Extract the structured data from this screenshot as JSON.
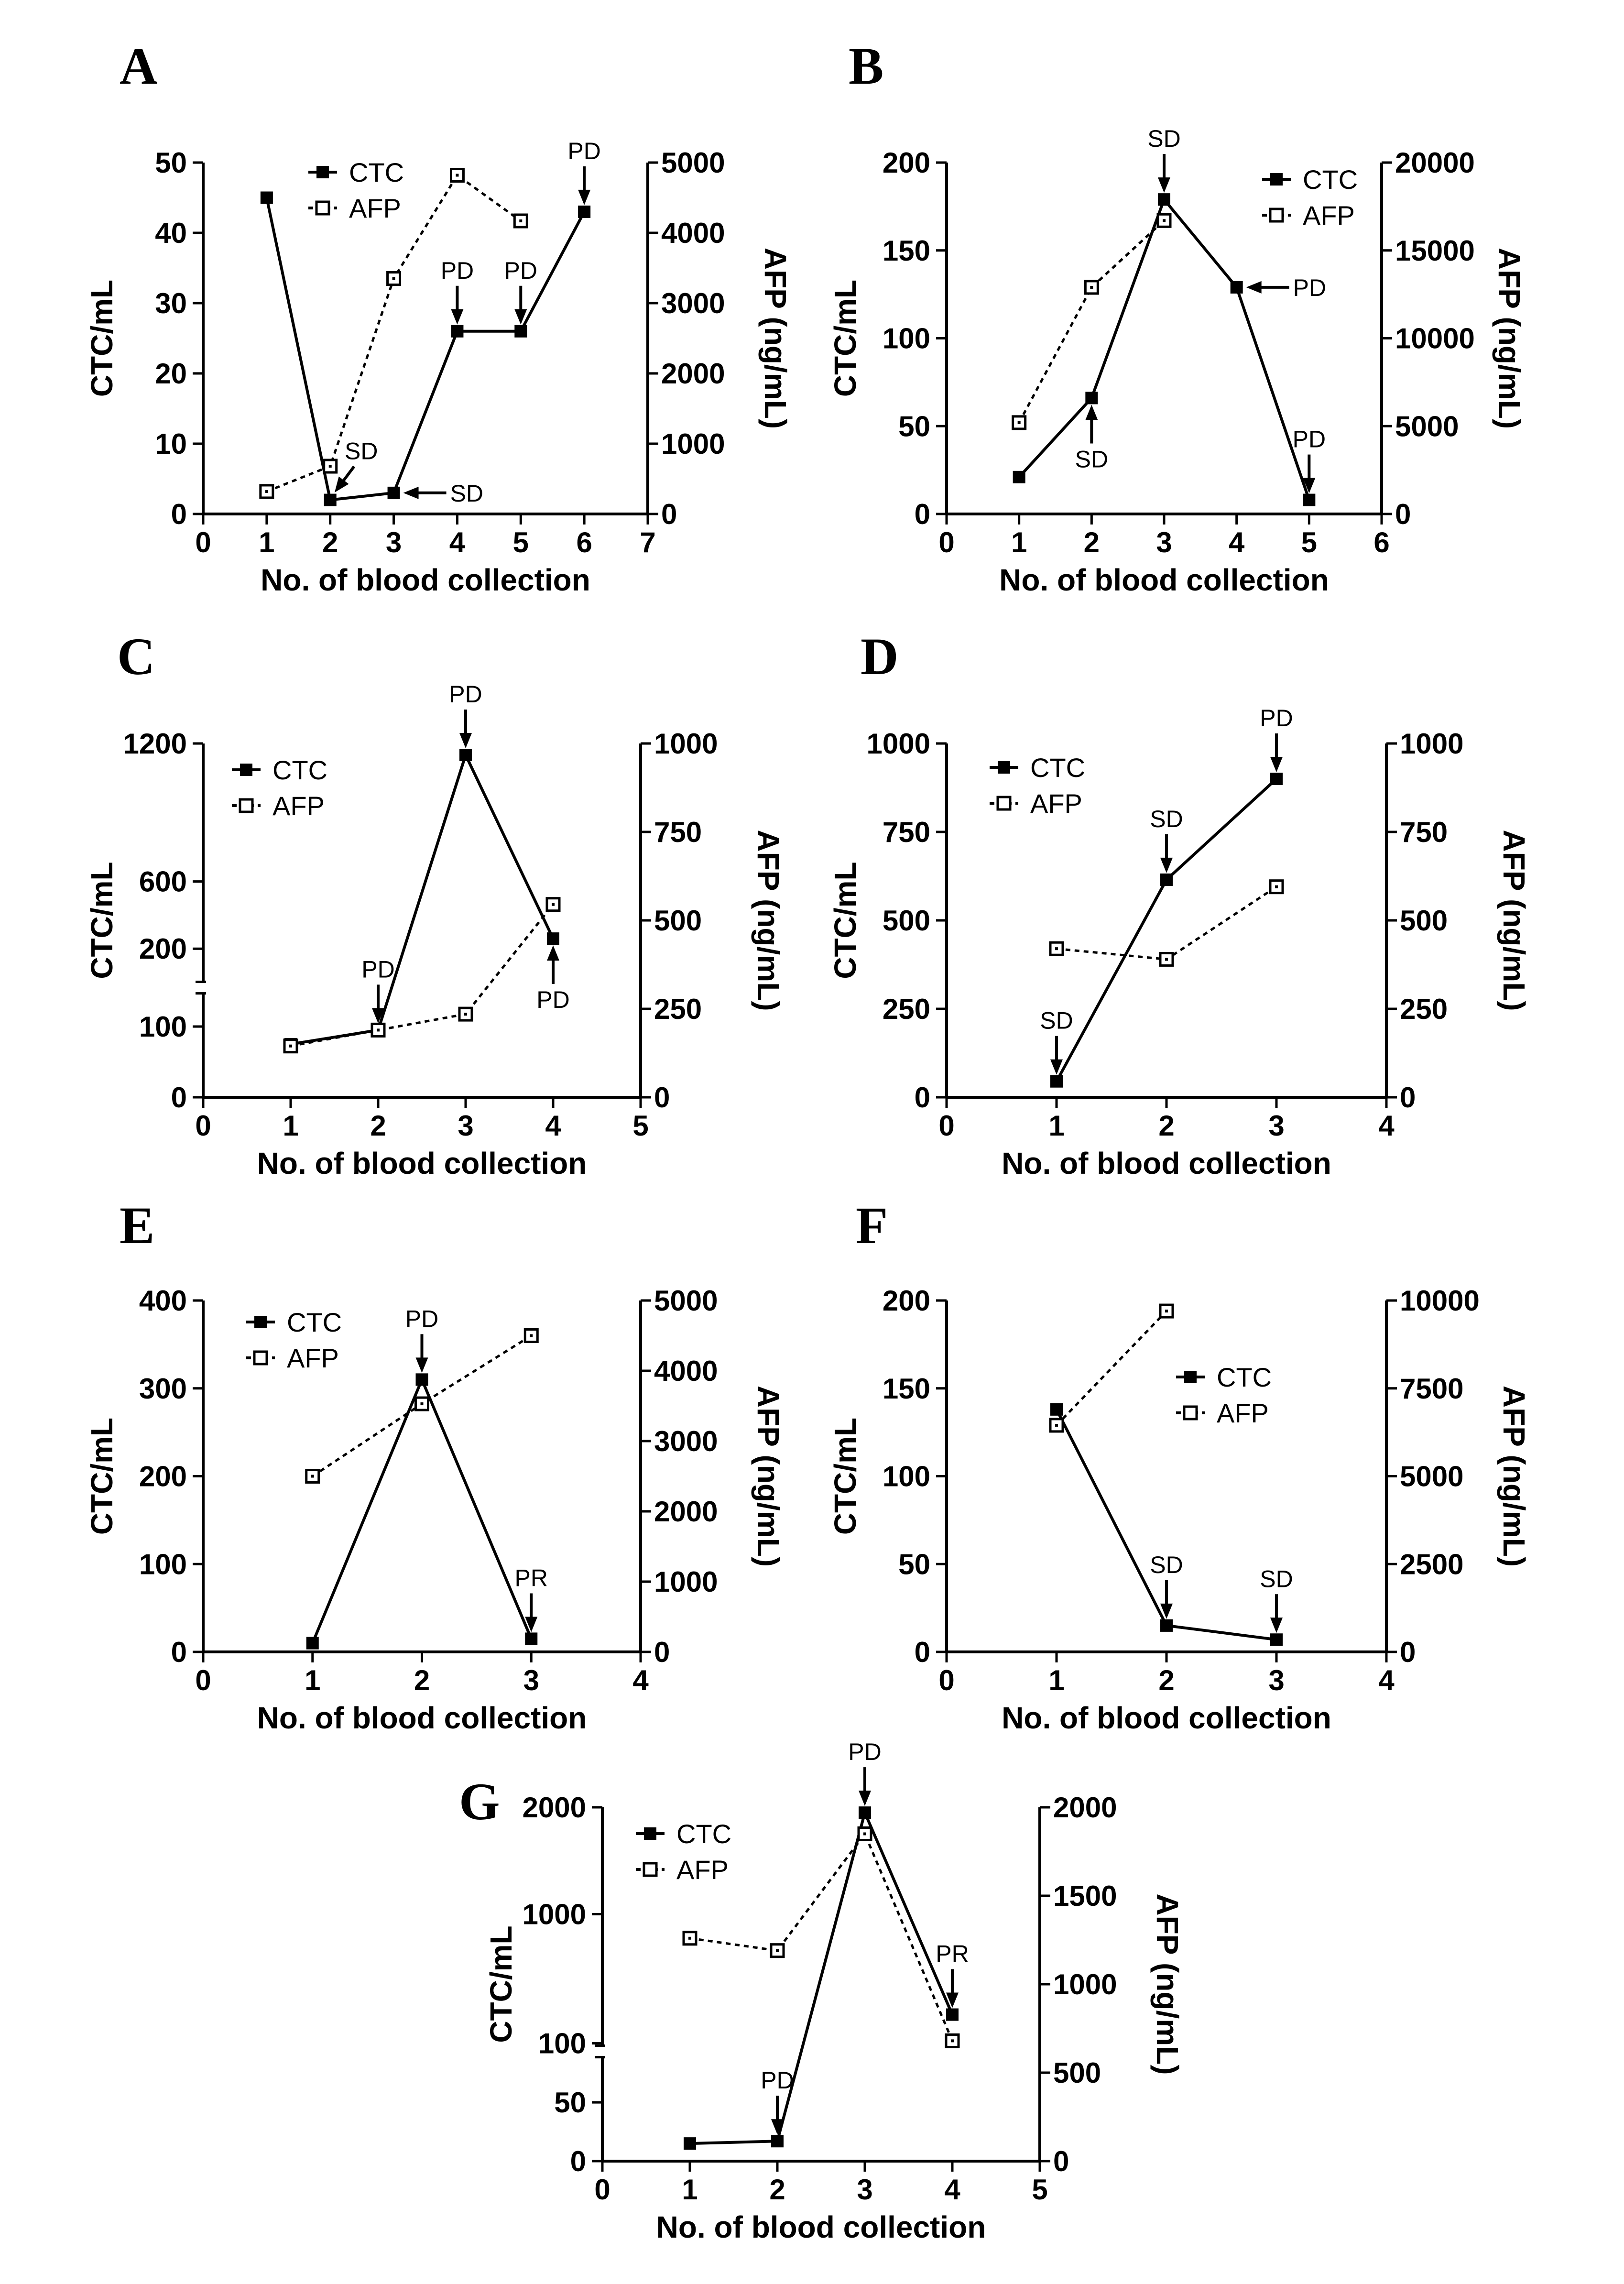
{
  "figure": {
    "x_axis_label": "No. of blood collection",
    "left_axis_label": "CTC/mL",
    "right_axis_label": "AFP (ng/mL)",
    "colors": {
      "ink": "#000000",
      "background": "#ffffff"
    }
  },
  "chart_data": [
    {
      "id": "A",
      "type": "line",
      "title": "A",
      "xlabel": "No. of blood collection",
      "ylabel": "CTC/mL",
      "y2label": "AFP (ng/mL)",
      "xlim": [
        0,
        7
      ],
      "xticks": [
        0,
        1,
        2,
        3,
        4,
        5,
        6,
        7
      ],
      "ylim": [
        0,
        50
      ],
      "yticks": [
        0,
        10,
        20,
        30,
        40,
        50
      ],
      "y2lim": [
        0,
        5000
      ],
      "y2ticks": [
        0,
        1000,
        2000,
        3000,
        4000,
        5000
      ],
      "series": [
        {
          "name": "CTC",
          "axis": "left",
          "style": "solid",
          "marker": "filled",
          "x": [
            1,
            2,
            3,
            4,
            5,
            6
          ],
          "values": [
            45,
            2,
            3,
            26,
            26,
            43
          ]
        },
        {
          "name": "AFP",
          "axis": "right",
          "style": "dotted",
          "marker": "open",
          "x": [
            1,
            2,
            3,
            4,
            5
          ],
          "values": [
            320,
            680,
            3350,
            4820,
            4170
          ]
        }
      ],
      "annotations": [
        {
          "label": "SD",
          "x": 2,
          "y": 2,
          "dir": "sw"
        },
        {
          "label": "SD",
          "x": 3,
          "y": 3,
          "dir": "w"
        },
        {
          "label": "PD",
          "x": 4,
          "y": 26,
          "dir": "down"
        },
        {
          "label": "PD",
          "x": 5,
          "y": 26,
          "dir": "down"
        },
        {
          "label": "PD",
          "x": 6,
          "y": 43,
          "dir": "down"
        }
      ]
    },
    {
      "id": "B",
      "type": "line",
      "title": "B",
      "xlabel": "No. of blood collection",
      "ylabel": "CTC/mL",
      "y2label": "AFP (ng/mL)",
      "xlim": [
        0,
        6
      ],
      "xticks": [
        0,
        1,
        2,
        3,
        4,
        5,
        6
      ],
      "ylim": [
        0,
        200
      ],
      "yticks": [
        0,
        50,
        100,
        150,
        200
      ],
      "y2lim": [
        0,
        20000
      ],
      "y2ticks": [
        0,
        5000,
        10000,
        15000,
        20000
      ],
      "series": [
        {
          "name": "CTC",
          "axis": "left",
          "style": "solid",
          "marker": "filled",
          "x": [
            1,
            2,
            3,
            4,
            5
          ],
          "values": [
            21,
            66,
            179,
            129,
            8
          ]
        },
        {
          "name": "AFP",
          "axis": "right",
          "style": "dotted",
          "marker": "open",
          "x": [
            1,
            2,
            3
          ],
          "values": [
            5200,
            12900,
            16700
          ]
        }
      ],
      "annotations": [
        {
          "label": "SD",
          "x": 2,
          "y": 66,
          "dir": "up"
        },
        {
          "label": "SD",
          "x": 3,
          "y": 179,
          "dir": "down"
        },
        {
          "label": "PD",
          "x": 4,
          "y": 129,
          "dir": "w"
        },
        {
          "label": "PD",
          "x": 5,
          "y": 8,
          "dir": "down"
        }
      ]
    },
    {
      "id": "C",
      "type": "line",
      "title": "C",
      "xlabel": "No. of blood collection",
      "ylabel": "CTC/mL",
      "y2label": "AFP (ng/mL)",
      "xlim": [
        0,
        5
      ],
      "xticks": [
        0,
        1,
        2,
        3,
        4,
        5
      ],
      "ylim": [
        0,
        1200
      ],
      "yticks": [
        0,
        100,
        200,
        600,
        1200
      ],
      "ybreak": true,
      "y2lim": [
        0,
        1000
      ],
      "y2ticks": [
        0,
        250,
        500,
        750,
        1000
      ],
      "series": [
        {
          "name": "CTC",
          "axis": "left",
          "style": "solid",
          "marker": "filled",
          "x": [
            1,
            2,
            3,
            4
          ],
          "values": [
            75,
            95,
            1150,
            260
          ]
        },
        {
          "name": "AFP",
          "axis": "right",
          "style": "dotted",
          "marker": "open",
          "x": [
            1,
            2,
            3,
            4
          ],
          "values": [
            145,
            190,
            235,
            545
          ]
        }
      ],
      "annotations": [
        {
          "label": "PD",
          "x": 2,
          "y": 95,
          "dir": "down"
        },
        {
          "label": "PD",
          "x": 3,
          "y": 1150,
          "dir": "down"
        },
        {
          "label": "PD",
          "x": 4,
          "y": 260,
          "dir": "up"
        }
      ]
    },
    {
      "id": "D",
      "type": "line",
      "title": "D",
      "xlabel": "No. of blood collection",
      "ylabel": "CTC/mL",
      "y2label": "AFP (ng/mL)",
      "xlim": [
        0,
        4
      ],
      "xticks": [
        0,
        1,
        2,
        3,
        4
      ],
      "ylim": [
        0,
        1000
      ],
      "yticks": [
        0,
        250,
        500,
        750,
        1000
      ],
      "y2lim": [
        0,
        1000
      ],
      "y2ticks": [
        0,
        250,
        500,
        750,
        1000
      ],
      "series": [
        {
          "name": "CTC",
          "axis": "left",
          "style": "solid",
          "marker": "filled",
          "x": [
            1,
            2,
            3
          ],
          "values": [
            45,
            615,
            900
          ]
        },
        {
          "name": "AFP",
          "axis": "right",
          "style": "dotted",
          "marker": "open",
          "x": [
            1,
            2,
            3
          ],
          "values": [
            420,
            390,
            595
          ]
        }
      ],
      "annotations": [
        {
          "label": "SD",
          "x": 1,
          "y": 45,
          "dir": "down"
        },
        {
          "label": "SD",
          "x": 2,
          "y": 615,
          "dir": "down"
        },
        {
          "label": "PD",
          "x": 3,
          "y": 900,
          "dir": "down"
        }
      ]
    },
    {
      "id": "E",
      "type": "line",
      "title": "E",
      "xlabel": "No. of blood collection",
      "ylabel": "CTC/mL",
      "y2label": "AFP (ng/mL)",
      "xlim": [
        0,
        4
      ],
      "xticks": [
        0,
        1,
        2,
        3,
        4
      ],
      "ylim": [
        0,
        400
      ],
      "yticks": [
        0,
        100,
        200,
        300,
        400
      ],
      "y2lim": [
        0,
        5000
      ],
      "y2ticks": [
        0,
        1000,
        2000,
        3000,
        4000,
        5000
      ],
      "series": [
        {
          "name": "CTC",
          "axis": "left",
          "style": "solid",
          "marker": "filled",
          "x": [
            1,
            2,
            3
          ],
          "values": [
            10,
            310,
            15
          ]
        },
        {
          "name": "AFP",
          "axis": "right",
          "style": "dotted",
          "marker": "open",
          "x": [
            1,
            2,
            3
          ],
          "values": [
            2500,
            3530,
            4500
          ]
        }
      ],
      "annotations": [
        {
          "label": "PD",
          "x": 2,
          "y": 310,
          "dir": "down"
        },
        {
          "label": "PR",
          "x": 3,
          "y": 15,
          "dir": "down"
        }
      ]
    },
    {
      "id": "F",
      "type": "line",
      "title": "F",
      "xlabel": "No. of blood collection",
      "ylabel": "CTC/mL",
      "y2label": "AFP (ng/mL)",
      "xlim": [
        0,
        4
      ],
      "xticks": [
        0,
        1,
        2,
        3,
        4
      ],
      "ylim": [
        0,
        200
      ],
      "yticks": [
        0,
        50,
        100,
        150,
        200
      ],
      "y2lim": [
        0,
        10000
      ],
      "y2ticks": [
        0,
        2500,
        5000,
        7500,
        10000
      ],
      "series": [
        {
          "name": "CTC",
          "axis": "left",
          "style": "solid",
          "marker": "filled",
          "x": [
            1,
            2,
            3
          ],
          "values": [
            138,
            15,
            7
          ]
        },
        {
          "name": "AFP",
          "axis": "right",
          "style": "dotted",
          "marker": "open",
          "x": [
            1,
            2
          ],
          "values": [
            6450,
            9700
          ]
        }
      ],
      "annotations": [
        {
          "label": "SD",
          "x": 2,
          "y": 15,
          "dir": "down"
        },
        {
          "label": "SD",
          "x": 3,
          "y": 7,
          "dir": "down"
        }
      ]
    },
    {
      "id": "G",
      "type": "line",
      "title": "G",
      "xlabel": "No. of blood collection",
      "ylabel": "CTC/mL",
      "y2label": "AFP (ng/mL)",
      "xlim": [
        0,
        5
      ],
      "xticks": [
        0,
        1,
        2,
        3,
        4,
        5
      ],
      "ylim": [
        0,
        2000
      ],
      "yticks": [
        0,
        50,
        100,
        1000,
        2000
      ],
      "ybreak": true,
      "y2lim": [
        0,
        2000
      ],
      "y2ticks": [
        0,
        500,
        1000,
        1500,
        2000
      ],
      "series": [
        {
          "name": "CTC",
          "axis": "left",
          "style": "solid",
          "marker": "filled",
          "x": [
            1,
            2,
            3,
            4
          ],
          "values": [
            15,
            17,
            1950,
            300
          ]
        },
        {
          "name": "AFP",
          "axis": "right",
          "style": "dotted",
          "marker": "open",
          "x": [
            1,
            2,
            3,
            4
          ],
          "values": [
            1260,
            1190,
            1850,
            680
          ]
        }
      ],
      "annotations": [
        {
          "label": "PD",
          "x": 2,
          "y": 17,
          "dir": "down"
        },
        {
          "label": "PD",
          "x": 3,
          "y": 1950,
          "dir": "down"
        },
        {
          "label": "PR",
          "x": 4,
          "y": 300,
          "dir": "down"
        }
      ]
    }
  ]
}
